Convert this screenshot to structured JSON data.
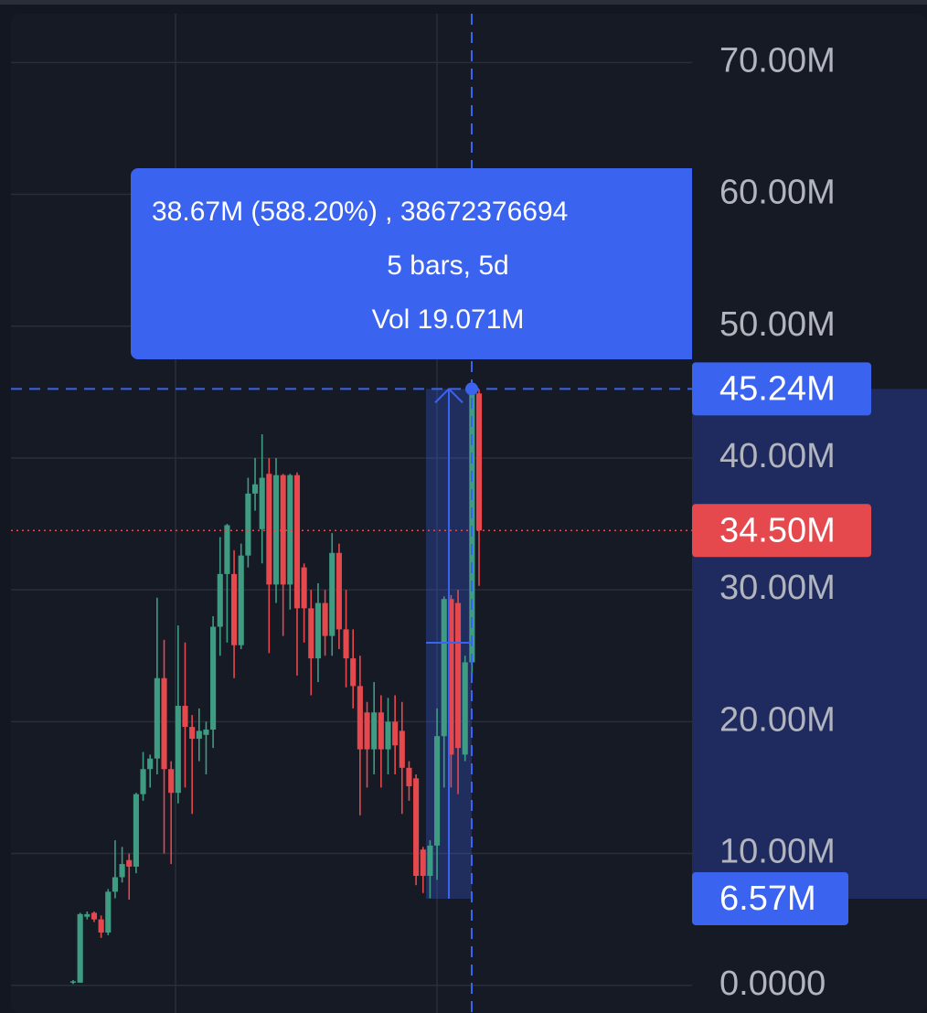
{
  "chart_data": {
    "type": "candlestick",
    "ylim": [
      -2.1,
      73.7
    ],
    "yticks": [
      {
        "value": 0,
        "label": "0.0000"
      },
      {
        "value": 10,
        "label": "10.00M"
      },
      {
        "value": 20,
        "label": "20.00M"
      },
      {
        "value": 30,
        "label": "30.00M"
      },
      {
        "value": 40,
        "label": "40.00M"
      },
      {
        "value": 50,
        "label": "50.00M"
      },
      {
        "value": 60,
        "label": "60.00M"
      },
      {
        "value": 70,
        "label": "70.00M"
      }
    ],
    "grid": true,
    "up_color": "#3f9c83",
    "down_color": "#e5484d",
    "series": {
      "open": [
        0.2,
        0.2,
        5.2,
        5.5,
        5.0,
        4.0,
        7.1,
        8.2,
        9.5,
        9.0,
        14.5,
        16.4,
        17.2,
        23.3,
        16.4,
        14.6,
        21.2,
        19.6,
        18.7,
        19.0,
        19.4,
        27.2,
        31.2,
        31.2,
        25.8,
        32.6,
        37.3,
        34.6,
        38.8,
        30.4,
        38.7,
        30.4,
        38.7,
        31.7,
        28.6,
        24.8,
        29.0,
        26.5,
        32.8,
        27.0,
        24.8,
        22.7,
        20.7,
        17.9,
        20.7,
        17.9,
        20.0,
        19.3,
        16.5,
        15.7,
        10.3,
        8.3,
        10.6,
        18.9,
        29.3,
        29.0,
        17.5,
        24.5,
        44.9
      ],
      "high": [
        0.4,
        5.5,
        5.6,
        5.6,
        5.3,
        7.3,
        11.0,
        10.5,
        10.0,
        14.6,
        17.7,
        17.5,
        29.4,
        26.2,
        17.0,
        27.3,
        26.0,
        20.5,
        21.0,
        20.0,
        28.0,
        34.0,
        35.0,
        33.0,
        33.5,
        38.5,
        40.0,
        41.8,
        40.0,
        40.0,
        38.8,
        38.8,
        38.9,
        32.0,
        30.0,
        30.5,
        30.0,
        34.3,
        33.5,
        30.0,
        27.0,
        25.0,
        21.5,
        23.0,
        22.0,
        21.8,
        22.0,
        21.5,
        17.0,
        16.0,
        10.5,
        11.0,
        21.0,
        29.5,
        29.6,
        30.0,
        25.0,
        45.3,
        45.2
      ],
      "low": [
        0.1,
        0.2,
        5.0,
        4.8,
        3.6,
        3.8,
        6.6,
        7.8,
        6.5,
        8.5,
        14.0,
        15.0,
        16.0,
        10.0,
        9.2,
        13.8,
        15.0,
        13.0,
        17.0,
        16.0,
        18.0,
        25.0,
        26.0,
        23.3,
        25.5,
        31.7,
        36.0,
        32.0,
        25.2,
        29.0,
        26.5,
        28.5,
        23.5,
        26.0,
        22.0,
        23.0,
        25.0,
        25.0,
        25.5,
        22.6,
        21.0,
        12.9,
        15.0,
        16.0,
        15.0,
        16.0,
        16.0,
        13.0,
        14.0,
        7.6,
        7.0,
        6.6,
        8.0,
        15.0,
        15.0,
        14.5,
        17.0,
        23.5,
        30.3
      ],
      "close": [
        0.3,
        5.4,
        5.4,
        5.0,
        4.0,
        7.1,
        8.2,
        9.2,
        9.0,
        14.5,
        16.4,
        17.2,
        23.3,
        16.4,
        14.6,
        21.2,
        19.6,
        18.7,
        19.3,
        19.4,
        27.2,
        31.2,
        34.9,
        25.8,
        32.6,
        37.3,
        38.0,
        38.5,
        30.4,
        38.7,
        30.4,
        38.7,
        28.6,
        28.6,
        24.8,
        29.0,
        26.5,
        32.8,
        27.0,
        24.8,
        22.7,
        17.9,
        17.9,
        20.7,
        17.9,
        20.0,
        18.2,
        16.5,
        15.1,
        8.3,
        8.3,
        10.6,
        18.9,
        29.3,
        17.5,
        18.0,
        24.5,
        45.2,
        34.5
      ]
    },
    "last_price": {
      "value": 34.5,
      "label": "34.50M"
    },
    "measure": {
      "from": {
        "value": 6.57,
        "label": "6.57M"
      },
      "to": {
        "value": 45.24,
        "label": "45.24M"
      },
      "change_label": "38.67M (588.20%) , 38672376694",
      "bars_label": "5 bars, 5d",
      "volume_label": "Vol 19.071M"
    }
  }
}
